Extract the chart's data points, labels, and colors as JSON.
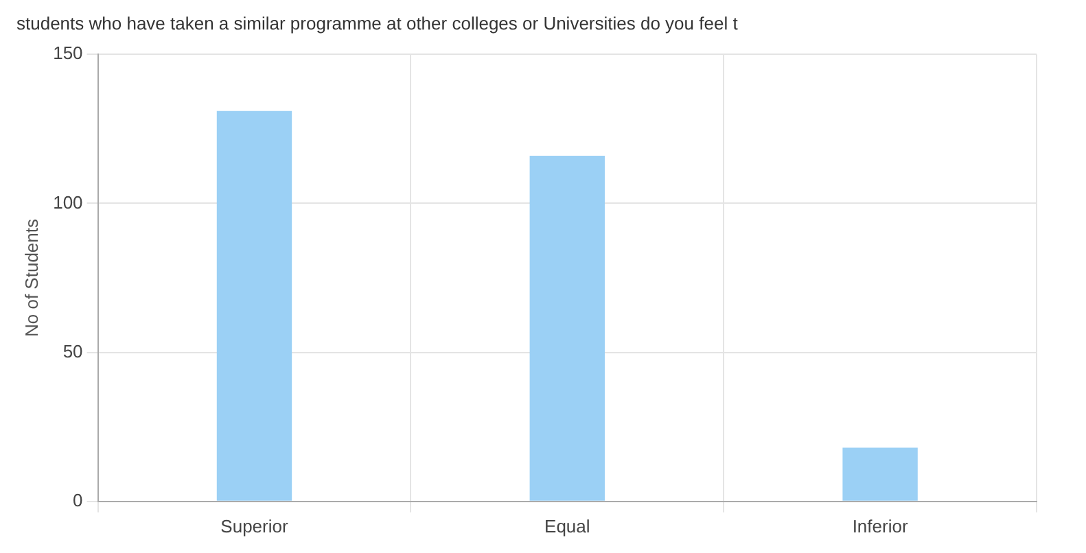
{
  "chart_data": {
    "type": "bar",
    "title": "students who have taken a similar programme at other colleges or Universities do you feel t",
    "ylabel": "No of Students",
    "categories": [
      "Superior",
      "Equal",
      "Inferior"
    ],
    "values": [
      131,
      116,
      18
    ],
    "color": "#9bd0f5",
    "ylim": [
      0,
      150
    ],
    "yticks": [
      0,
      50,
      100,
      150
    ],
    "grid": true
  }
}
